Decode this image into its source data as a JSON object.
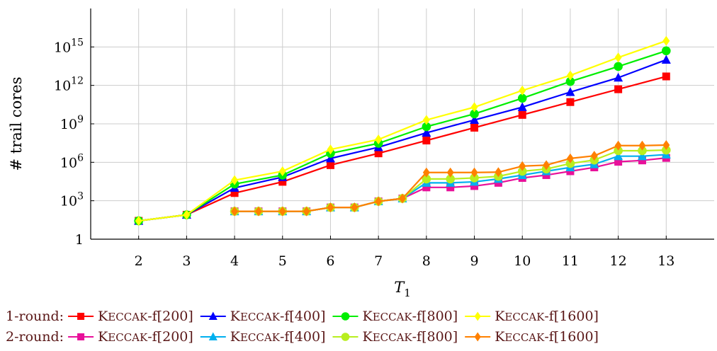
{
  "chart_data": {
    "type": "line",
    "xlabel": "T",
    "xlabel_subscript": "1",
    "ylabel": "# trail cores",
    "y_scale": "log",
    "ylim": [
      1,
      1000000000000000000
    ],
    "xlim": [
      1,
      14
    ],
    "grid": "on",
    "x_ticks": [
      2,
      3,
      4,
      5,
      6,
      7,
      8,
      9,
      10,
      11,
      12,
      13
    ],
    "x_tick_labels": [
      "2",
      "3",
      "4",
      "5",
      "6",
      "7",
      "8",
      "9",
      "10",
      "11",
      "12",
      "13"
    ],
    "y_ticks": [
      {
        "value": 1,
        "base": "1",
        "exp": ""
      },
      {
        "value": 1000,
        "base": "10",
        "exp": "3"
      },
      {
        "value": 1000000,
        "base": "10",
        "exp": "6"
      },
      {
        "value": 1000000000,
        "base": "10",
        "exp": "9"
      },
      {
        "value": 1000000000000,
        "base": "10",
        "exp": "12"
      },
      {
        "value": 1000000000000000,
        "base": "10",
        "exp": "15"
      }
    ],
    "legend_placement": "bottom",
    "legend_rows": [
      {
        "label": "1-round:",
        "series": [
          "1-round Keccak-f[200]",
          "1-round Keccak-f[400]",
          "1-round Keccak-f[800]",
          "1-round Keccak-f[1600]"
        ]
      },
      {
        "label": "2-round:",
        "series": [
          "2-round Keccak-f[200]",
          "2-round Keccak-f[400]",
          "2-round Keccak-f[800]",
          "2-round Keccak-f[1600]"
        ]
      }
    ],
    "series": [
      {
        "id": "1-round Keccak-f[200]",
        "sc": "Keccak",
        "suffix": "-f[200]",
        "color": "#ff0000",
        "marker": "square",
        "x": [
          2,
          3,
          4,
          5,
          6,
          7,
          8,
          9,
          10,
          11,
          12,
          13
        ],
        "y": [
          27,
          80,
          4000,
          30000,
          600000,
          5000000,
          50000000,
          500000000,
          5000000000,
          50000000000,
          500000000000,
          5000000000000
        ]
      },
      {
        "id": "1-round Keccak-f[400]",
        "sc": "Keccak",
        "suffix": "-f[400]",
        "color": "#0000ff",
        "marker": "triangle",
        "x": [
          2,
          3,
          4,
          5,
          6,
          7,
          8,
          9,
          10,
          11,
          12,
          13
        ],
        "y": [
          27,
          80,
          10000,
          70000,
          2000000,
          15000000,
          200000000,
          2000000000,
          20000000000,
          300000000000,
          4000000000000,
          100000000000000
        ]
      },
      {
        "id": "1-round Keccak-f[800]",
        "sc": "Keccak",
        "suffix": "-f[800]",
        "color": "#00ee00",
        "marker": "circle",
        "x": [
          2,
          3,
          4,
          5,
          6,
          7,
          8,
          9,
          10,
          11,
          12,
          13
        ],
        "y": [
          27,
          80,
          20000,
          100000,
          5000000,
          30000000,
          600000000,
          6000000000,
          100000000000,
          2000000000000,
          30000000000000,
          500000000000000
        ]
      },
      {
        "id": "1-round Keccak-f[1600]",
        "sc": "Keccak",
        "suffix": "-f[1600]",
        "color": "#ffff00",
        "marker": "diamond",
        "x": [
          2,
          3,
          4,
          5,
          6,
          7,
          8,
          9,
          10,
          11,
          12,
          13
        ],
        "y": [
          27,
          80,
          40000,
          200000,
          10000000,
          60000000,
          2000000000,
          20000000000,
          400000000000,
          6000000000000,
          150000000000000,
          3000000000000000
        ]
      },
      {
        "id": "2-round Keccak-f[200]",
        "sc": "Keccak",
        "suffix": "-f[200]",
        "color": "#e8109a",
        "marker": "square",
        "x": [
          4,
          4.5,
          5,
          5.5,
          6,
          6.5,
          7,
          7.5,
          8,
          8.5,
          9,
          9.5,
          10,
          10.5,
          11,
          11.5,
          12,
          12.5,
          13
        ],
        "y": [
          150,
          150,
          150,
          150,
          300,
          300,
          900,
          1500,
          11000,
          11000,
          14000,
          25000,
          60000,
          100000,
          200000,
          400000,
          1100000,
          1400000,
          2200000
        ]
      },
      {
        "id": "2-round Keccak-f[400]",
        "sc": "Keccak",
        "suffix": "-f[400]",
        "color": "#00b0ef",
        "marker": "triangle",
        "x": [
          4,
          4.5,
          5,
          5.5,
          6,
          6.5,
          7,
          7.5,
          8,
          8.5,
          9,
          9.5,
          10,
          10.5,
          11,
          11.5,
          12,
          12.5,
          13
        ],
        "y": [
          150,
          150,
          150,
          150,
          300,
          300,
          900,
          1500,
          25000,
          25000,
          30000,
          50000,
          100000,
          200000,
          400000,
          700000,
          3000000,
          3000000,
          4000000
        ]
      },
      {
        "id": "2-round Keccak-f[800]",
        "sc": "Keccak",
        "suffix": "-f[800]",
        "color": "#b8ee1f",
        "marker": "circle",
        "x": [
          4,
          4.5,
          5,
          5.5,
          6,
          6.5,
          7,
          7.5,
          8,
          8.5,
          9,
          9.5,
          10,
          10.5,
          11,
          11.5,
          12,
          12.5,
          13
        ],
        "y": [
          150,
          150,
          150,
          150,
          300,
          300,
          900,
          1500,
          50000,
          50000,
          60000,
          80000,
          200000,
          300000,
          800000,
          1500000,
          8000000,
          8000000,
          9000000
        ]
      },
      {
        "id": "2-round Keccak-f[1600]",
        "sc": "Keccak",
        "suffix": "-f[1600]",
        "color": "#ff8000",
        "marker": "diamond",
        "x": [
          4,
          4.5,
          5,
          5.5,
          6,
          6.5,
          7,
          7.5,
          8,
          8.5,
          9,
          9.5,
          10,
          10.5,
          11,
          11.5,
          12,
          12.5,
          13
        ],
        "y": [
          150,
          150,
          150,
          150,
          300,
          300,
          900,
          1500,
          160000,
          160000,
          160000,
          170000,
          500000,
          600000,
          2000000,
          3200000,
          20000000,
          20000000,
          22000000
        ]
      }
    ]
  }
}
